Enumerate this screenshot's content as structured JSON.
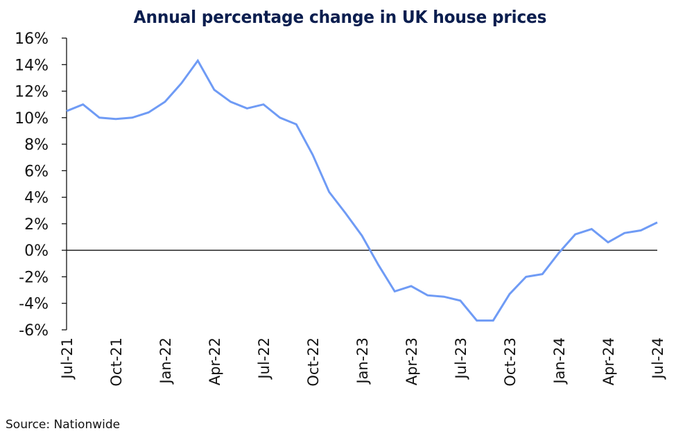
{
  "chart_data": {
    "type": "line",
    "title": "Annual percentage change in UK house prices",
    "xlabel": "",
    "ylabel": "",
    "source": "Source: Nationwide",
    "ylim": [
      -6,
      16
    ],
    "yticks": [
      16,
      14,
      12,
      10,
      8,
      6,
      4,
      2,
      0,
      -2,
      -4,
      -6
    ],
    "ytick_labels": [
      "16%",
      "14%",
      "12%",
      "10%",
      "8%",
      "6%",
      "4%",
      "2%",
      "0%",
      "-2%",
      "-4%",
      "-6%"
    ],
    "xtick_labels": [
      "Jul-21",
      "Oct-21",
      "Jan-22",
      "Apr-22",
      "Jul-22",
      "Oct-22",
      "Jan-23",
      "Apr-23",
      "Jul-23",
      "Oct-23",
      "Jan-24",
      "Apr-24",
      "Jul-24"
    ],
    "xtick_every_n_months": 3,
    "grid": false,
    "zero_line": true,
    "line_color": "#6f9bf5",
    "x": [
      "Jul-21",
      "Aug-21",
      "Sep-21",
      "Oct-21",
      "Nov-21",
      "Dec-21",
      "Jan-22",
      "Feb-22",
      "Mar-22",
      "Apr-22",
      "May-22",
      "Jun-22",
      "Jul-22",
      "Aug-22",
      "Sep-22",
      "Oct-22",
      "Nov-22",
      "Dec-22",
      "Jan-23",
      "Feb-23",
      "Mar-23",
      "Apr-23",
      "May-23",
      "Jun-23",
      "Jul-23",
      "Aug-23",
      "Sep-23",
      "Oct-23",
      "Nov-23",
      "Dec-23",
      "Jan-24",
      "Feb-24",
      "Mar-24",
      "Apr-24",
      "May-24",
      "Jun-24",
      "Jul-24"
    ],
    "series": [
      {
        "name": "Annual % change",
        "values": [
          10.5,
          11.0,
          10.0,
          9.9,
          10.0,
          10.4,
          11.2,
          12.6,
          14.3,
          12.1,
          11.2,
          10.7,
          11.0,
          10.0,
          9.5,
          7.2,
          4.4,
          2.8,
          1.1,
          -1.1,
          -3.1,
          -2.7,
          -3.4,
          -3.5,
          -3.8,
          -5.3,
          -5.3,
          -3.3,
          -2.0,
          -1.8,
          -0.2,
          1.2,
          1.6,
          0.6,
          1.3,
          1.5,
          2.1
        ]
      }
    ]
  }
}
